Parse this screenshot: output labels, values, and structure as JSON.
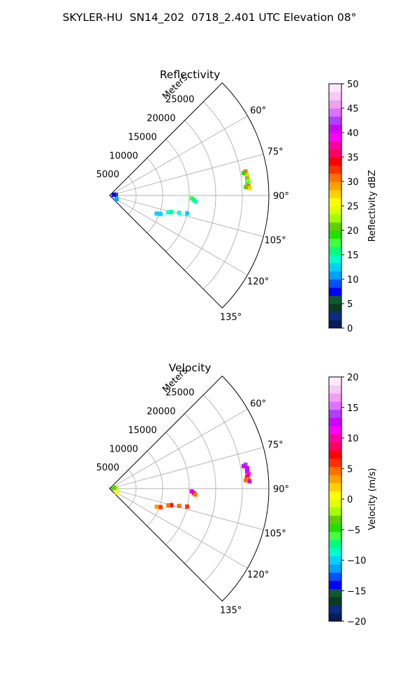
{
  "figure_title": "SKYLER-HU  SN14_202  0718_2.401 UTC Elevation 08°",
  "chart_data": [
    {
      "type": "polar-sector",
      "title": "Reflectivity",
      "radial_label": "Meters",
      "r_ticks": [
        "5000",
        "10000",
        "15000",
        "20000",
        "25000"
      ],
      "theta_ticks": [
        "60°",
        "75°",
        "90°",
        "105°",
        "120°",
        "135°"
      ],
      "theta_range_deg": [
        45,
        135
      ],
      "r_range": [
        0,
        30000
      ],
      "colorbar": {
        "label": "Reflectivity dBZ",
        "range": [
          0,
          50
        ],
        "ticks": [
          "0",
          "5",
          "10",
          "15",
          "20",
          "25",
          "30",
          "35",
          "40",
          "45",
          "50"
        ],
        "colors": [
          "#081d58",
          "#0c2c84",
          "#0b3b20",
          "#0f5a2f",
          "#0000ff",
          "#0050ff",
          "#00a0ff",
          "#00d0ff",
          "#00ffd0",
          "#00ff80",
          "#40ff40",
          "#20e000",
          "#60d000",
          "#a0ff00",
          "#e0ff00",
          "#ffff00",
          "#ffd000",
          "#ffa000",
          "#ff7000",
          "#ff3000",
          "#ff0000",
          "#ff0060",
          "#ff00a0",
          "#ff00ff",
          "#d000ff",
          "#b040ff",
          "#e070ff",
          "#f0a0f0",
          "#f8c8f8",
          "#ffe8ff"
        ]
      },
      "echoes": [
        {
          "theta": 80,
          "r": 26000,
          "value": 30
        },
        {
          "theta": 81.5,
          "r": 26200,
          "value": 27
        },
        {
          "theta": 83,
          "r": 26100,
          "value": 20
        },
        {
          "theta": 84,
          "r": 26300,
          "value": 22
        },
        {
          "theta": 85,
          "r": 26000,
          "value": 18
        },
        {
          "theta": 86,
          "r": 26200,
          "value": 30
        },
        {
          "theta": 87,
          "r": 26400,
          "value": 28
        },
        {
          "theta": 80.5,
          "r": 25600,
          "value": 19
        },
        {
          "theta": 86.5,
          "r": 25700,
          "value": 20
        },
        {
          "theta": 92,
          "r": 15500,
          "value": 17
        },
        {
          "theta": 93,
          "r": 15900,
          "value": 15
        },
        {
          "theta": 94,
          "r": 16200,
          "value": 14
        },
        {
          "theta": 103,
          "r": 15000,
          "value": 13
        },
        {
          "theta": 104,
          "r": 13500,
          "value": 14
        },
        {
          "theta": 105,
          "r": 12000,
          "value": 15
        },
        {
          "theta": 106,
          "r": 11500,
          "value": 14
        },
        {
          "theta": 110,
          "r": 10200,
          "value": 13
        },
        {
          "theta": 111,
          "r": 9500,
          "value": 12
        },
        {
          "theta": 118,
          "r": 1500,
          "value": 11
        },
        {
          "theta": 83,
          "r": 1200,
          "value": 9
        },
        {
          "theta": 80,
          "r": 800,
          "value": 8
        }
      ]
    },
    {
      "type": "polar-sector",
      "title": "Velocity",
      "radial_label": "Meters",
      "r_ticks": [
        "5000",
        "10000",
        "15000",
        "20000",
        "25000"
      ],
      "theta_ticks": [
        "60°",
        "75°",
        "90°",
        "105°",
        "120°",
        "135°"
      ],
      "theta_range_deg": [
        45,
        135
      ],
      "r_range": [
        0,
        30000
      ],
      "colorbar": {
        "label": "Velocity (m/s)",
        "range": [
          -20,
          20
        ],
        "ticks": [
          "−20",
          "−15",
          "−10",
          "−5",
          "0",
          "5",
          "10",
          "15",
          "20"
        ],
        "colors": [
          "#081d58",
          "#0c2c84",
          "#0b3b20",
          "#0f5a2f",
          "#0000ff",
          "#0050ff",
          "#00a0ff",
          "#00d0ff",
          "#00ffd0",
          "#00ff80",
          "#40ff40",
          "#20e000",
          "#60d000",
          "#a0ff00",
          "#e0ff00",
          "#ffff00",
          "#ffd000",
          "#ffa000",
          "#ff7000",
          "#ff3000",
          "#ff0000",
          "#ff0060",
          "#ff00a0",
          "#ff00ff",
          "#d000ff",
          "#b040ff",
          "#e070ff",
          "#f0a0f0",
          "#f8c8f8",
          "#ffe8ff"
        ]
      },
      "echoes": [
        {
          "theta": 80,
          "r": 26000,
          "value": 14
        },
        {
          "theta": 81.5,
          "r": 26200,
          "value": 12
        },
        {
          "theta": 83,
          "r": 26100,
          "value": 13
        },
        {
          "theta": 84,
          "r": 26300,
          "value": 11
        },
        {
          "theta": 85,
          "r": 26000,
          "value": 8
        },
        {
          "theta": 86,
          "r": 26200,
          "value": 4
        },
        {
          "theta": 87,
          "r": 26400,
          "value": 12
        },
        {
          "theta": 80.5,
          "r": 25600,
          "value": 13
        },
        {
          "theta": 86.5,
          "r": 25700,
          "value": 5
        },
        {
          "theta": 92,
          "r": 15500,
          "value": 12
        },
        {
          "theta": 93,
          "r": 15900,
          "value": 9
        },
        {
          "theta": 94,
          "r": 16200,
          "value": 4
        },
        {
          "theta": 103,
          "r": 15000,
          "value": 6
        },
        {
          "theta": 104,
          "r": 13500,
          "value": 5
        },
        {
          "theta": 105,
          "r": 12000,
          "value": 7
        },
        {
          "theta": 106,
          "r": 11500,
          "value": 4
        },
        {
          "theta": 110,
          "r": 10200,
          "value": 6
        },
        {
          "theta": 111,
          "r": 9500,
          "value": 3
        },
        {
          "theta": 118,
          "r": 1500,
          "value": 0
        },
        {
          "theta": 83,
          "r": 1200,
          "value": -2
        },
        {
          "theta": 80,
          "r": 800,
          "value": -4
        }
      ]
    }
  ]
}
